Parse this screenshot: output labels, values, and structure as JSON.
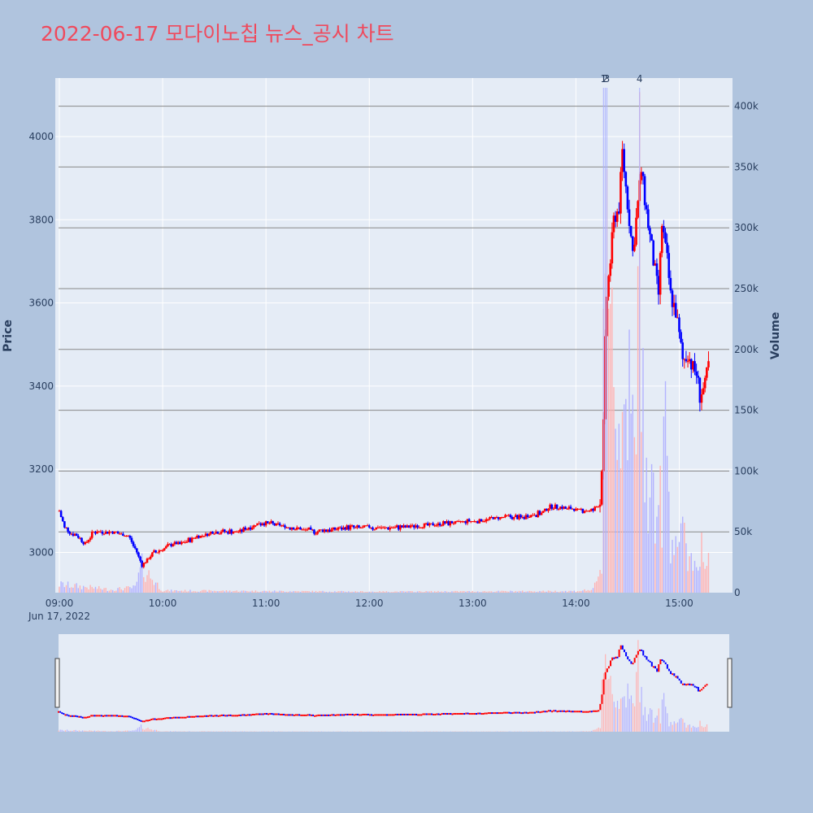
{
  "chart_data": {
    "type": "candlestick",
    "title": "2022-06-17 모다이노칩 뉴스_공시 차트",
    "ylabel": "Price",
    "y2label": "Volume",
    "date_label": "Jun 17, 2022",
    "price_range": [
      2900,
      4150
    ],
    "volume_range": [
      0,
      420000
    ],
    "price_ticks": [
      "3000",
      "3200",
      "3400",
      "3600",
      "3800",
      "4000"
    ],
    "volume_ticks": [
      "0",
      "50k",
      "100k",
      "150k",
      "200k",
      "250k",
      "300k",
      "350k",
      "400k"
    ],
    "time_ticks": [
      "09:00",
      "10:00",
      "11:00",
      "12:00",
      "13:00",
      "14:00",
      "15:00"
    ],
    "x_range": [
      "09:00",
      "15:30"
    ],
    "annotations": [
      {
        "label": "1",
        "time": "14:16"
      },
      {
        "label": "2",
        "time": "14:17"
      },
      {
        "label": "3",
        "time": "14:18"
      },
      {
        "label": "4",
        "time": "14:37"
      }
    ],
    "colors": {
      "up": "#ff0000",
      "down": "#0000ff",
      "up_volume": "#ffb3b3",
      "down_volume": "#b3b3ff"
    },
    "price_keyframes": [
      [
        "09:00",
        3100
      ],
      [
        "09:03",
        3060
      ],
      [
        "09:06",
        3050
      ],
      [
        "09:10",
        3040
      ],
      [
        "09:15",
        3020
      ],
      [
        "09:20",
        3050
      ],
      [
        "09:30",
        3050
      ],
      [
        "09:40",
        3040
      ],
      [
        "09:45",
        3000
      ],
      [
        "09:48",
        2970
      ],
      [
        "09:55",
        3000
      ],
      [
        "10:00",
        3010
      ],
      [
        "10:05",
        3020
      ],
      [
        "10:10",
        3020
      ],
      [
        "10:15",
        3030
      ],
      [
        "10:30",
        3050
      ],
      [
        "10:45",
        3050
      ],
      [
        "10:55",
        3070
      ],
      [
        "11:00",
        3070
      ],
      [
        "11:15",
        3060
      ],
      [
        "11:30",
        3050
      ],
      [
        "11:45",
        3060
      ],
      [
        "12:00",
        3060
      ],
      [
        "12:15",
        3060
      ],
      [
        "12:30",
        3065
      ],
      [
        "12:45",
        3070
      ],
      [
        "13:00",
        3075
      ],
      [
        "13:15",
        3085
      ],
      [
        "13:30",
        3085
      ],
      [
        "13:40",
        3095
      ],
      [
        "13:45",
        3110
      ],
      [
        "13:55",
        3105
      ],
      [
        "14:05",
        3100
      ],
      [
        "14:10",
        3100
      ],
      [
        "14:14",
        3120
      ],
      [
        "14:16",
        3300
      ],
      [
        "14:17",
        3500
      ],
      [
        "14:18",
        3620
      ],
      [
        "14:20",
        3700
      ],
      [
        "14:22",
        3800
      ],
      [
        "14:25",
        3830
      ],
      [
        "14:27",
        3960
      ],
      [
        "14:30",
        3840
      ],
      [
        "14:33",
        3720
      ],
      [
        "14:35",
        3800
      ],
      [
        "14:38",
        3920
      ],
      [
        "14:40",
        3850
      ],
      [
        "14:43",
        3760
      ],
      [
        "14:45",
        3700
      ],
      [
        "14:48",
        3620
      ],
      [
        "14:50",
        3790
      ],
      [
        "14:53",
        3700
      ],
      [
        "14:55",
        3620
      ],
      [
        "14:58",
        3580
      ],
      [
        "15:00",
        3520
      ],
      [
        "15:02",
        3460
      ],
      [
        "15:05",
        3480
      ],
      [
        "15:08",
        3440
      ],
      [
        "15:10",
        3430
      ],
      [
        "15:12",
        3380
      ],
      [
        "15:15",
        3400
      ],
      [
        "15:17",
        3450
      ]
    ],
    "volume_keyframes": [
      [
        "09:00",
        8000
      ],
      [
        "09:30",
        3000
      ],
      [
        "09:44",
        5000
      ],
      [
        "09:48",
        25000
      ],
      [
        "10:00",
        2000
      ],
      [
        "11:00",
        1500
      ],
      [
        "12:00",
        1000
      ],
      [
        "13:00",
        1200
      ],
      [
        "14:00",
        1500
      ],
      [
        "14:10",
        3000
      ],
      [
        "14:15",
        20000
      ],
      [
        "14:16",
        400000
      ],
      [
        "14:17",
        360000
      ],
      [
        "14:18",
        400000
      ],
      [
        "14:20",
        340000
      ],
      [
        "14:22",
        200000
      ],
      [
        "14:25",
        150000
      ],
      [
        "14:28",
        270000
      ],
      [
        "14:30",
        180000
      ],
      [
        "14:35",
        120000
      ],
      [
        "14:37",
        405000
      ],
      [
        "14:40",
        140000
      ],
      [
        "14:45",
        90000
      ],
      [
        "14:50",
        80000
      ],
      [
        "14:52",
        165000
      ],
      [
        "14:55",
        60000
      ],
      [
        "15:00",
        55000
      ],
      [
        "15:05",
        40000
      ],
      [
        "15:10",
        25000
      ],
      [
        "15:12",
        50000
      ],
      [
        "15:15",
        25000
      ],
      [
        "15:17",
        30000
      ]
    ],
    "rangeslider": true
  }
}
